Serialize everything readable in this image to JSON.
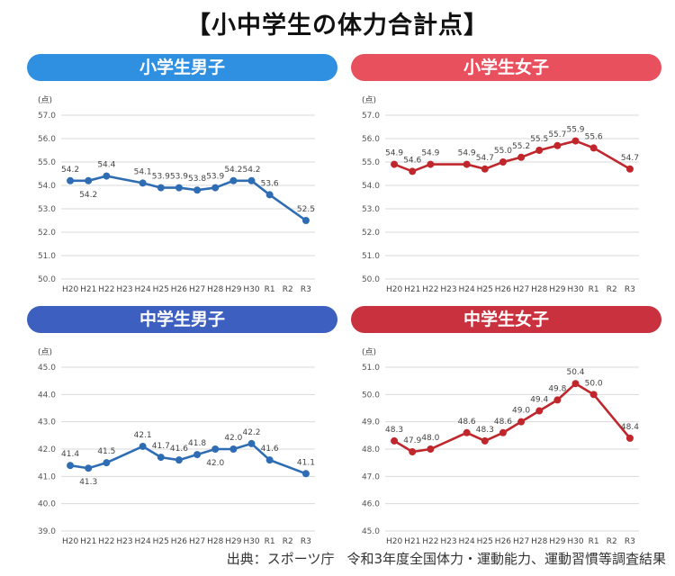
{
  "page": {
    "title": "【小中学生の体力合計点】",
    "source_prefix": "出典：スポーツ庁",
    "source_doc": "令和3年度全国体力・運動能力、運動習慣等調査結果"
  },
  "chart_data": [
    {
      "type": "line",
      "title": "小学生男子",
      "header_color": "#2f8fe0",
      "line_color": "#2e6db4",
      "unit": "(点)",
      "categories": [
        "H20",
        "H21",
        "H22",
        "H23",
        "H24",
        "H25",
        "H26",
        "H27",
        "H28",
        "H29",
        "H30",
        "R1",
        "R2",
        "R3"
      ],
      "values": [
        54.2,
        54.2,
        54.4,
        null,
        54.1,
        53.9,
        53.9,
        53.8,
        53.9,
        54.2,
        54.2,
        53.6,
        null,
        52.5
      ],
      "label_below": [
        false,
        true,
        false,
        false,
        false,
        false,
        false,
        false,
        false,
        false,
        false,
        false,
        false,
        false
      ],
      "ylim": [
        50.0,
        57.0
      ],
      "yticks": [
        "50.0",
        "51.0",
        "52.0",
        "53.0",
        "54.0",
        "55.0",
        "56.0",
        "57.0"
      ],
      "grid": true
    },
    {
      "type": "line",
      "title": "小学生女子",
      "header_color": "#e9505e",
      "line_color": "#c0272d",
      "unit": "(点)",
      "categories": [
        "H20",
        "H21",
        "H22",
        "H23",
        "H24",
        "H25",
        "H26",
        "H27",
        "H28",
        "H29",
        "H30",
        "R1",
        "R2",
        "R3"
      ],
      "values": [
        54.9,
        54.6,
        54.9,
        null,
        54.9,
        54.7,
        55.0,
        55.2,
        55.5,
        55.7,
        55.9,
        55.6,
        null,
        54.7
      ],
      "label_below": [
        false,
        false,
        false,
        false,
        false,
        false,
        false,
        false,
        false,
        false,
        false,
        false,
        false,
        false
      ],
      "ylim": [
        50.0,
        57.0
      ],
      "yticks": [
        "50.0",
        "51.0",
        "52.0",
        "53.0",
        "54.0",
        "55.0",
        "56.0",
        "57.0"
      ],
      "grid": true
    },
    {
      "type": "line",
      "title": "中学生男子",
      "header_color": "#3d5fbf",
      "line_color": "#2e6db4",
      "unit": "(点)",
      "categories": [
        "H20",
        "H21",
        "H22",
        "H23",
        "H24",
        "H25",
        "H26",
        "H27",
        "H28",
        "H29",
        "H30",
        "R1",
        "R2",
        "R3"
      ],
      "values": [
        41.4,
        41.3,
        41.5,
        null,
        42.1,
        41.7,
        41.6,
        41.8,
        42.0,
        42.0,
        42.2,
        41.6,
        null,
        41.1
      ],
      "label_below": [
        false,
        true,
        false,
        false,
        false,
        false,
        false,
        false,
        true,
        false,
        false,
        false,
        false,
        false
      ],
      "ylim": [
        39.0,
        45.0
      ],
      "yticks": [
        "39.0",
        "40.0",
        "41.0",
        "42.0",
        "43.0",
        "44.0",
        "45.0"
      ],
      "grid": true
    },
    {
      "type": "line",
      "title": "中学生女子",
      "header_color": "#c9313f",
      "line_color": "#c0272d",
      "unit": "(点)",
      "categories": [
        "H20",
        "H21",
        "H22",
        "H23",
        "H24",
        "H25",
        "H26",
        "H27",
        "H28",
        "H29",
        "H30",
        "R1",
        "R2",
        "R3"
      ],
      "values": [
        48.3,
        47.9,
        48.0,
        null,
        48.6,
        48.3,
        48.6,
        49.0,
        49.4,
        49.8,
        50.4,
        50.0,
        null,
        48.4
      ],
      "label_below": [
        false,
        false,
        false,
        false,
        false,
        false,
        false,
        false,
        false,
        false,
        false,
        false,
        false,
        false
      ],
      "ylim": [
        45.0,
        51.0
      ],
      "yticks": [
        "45.0",
        "46.0",
        "47.0",
        "48.0",
        "49.0",
        "50.0",
        "51.0"
      ],
      "grid": true
    }
  ]
}
